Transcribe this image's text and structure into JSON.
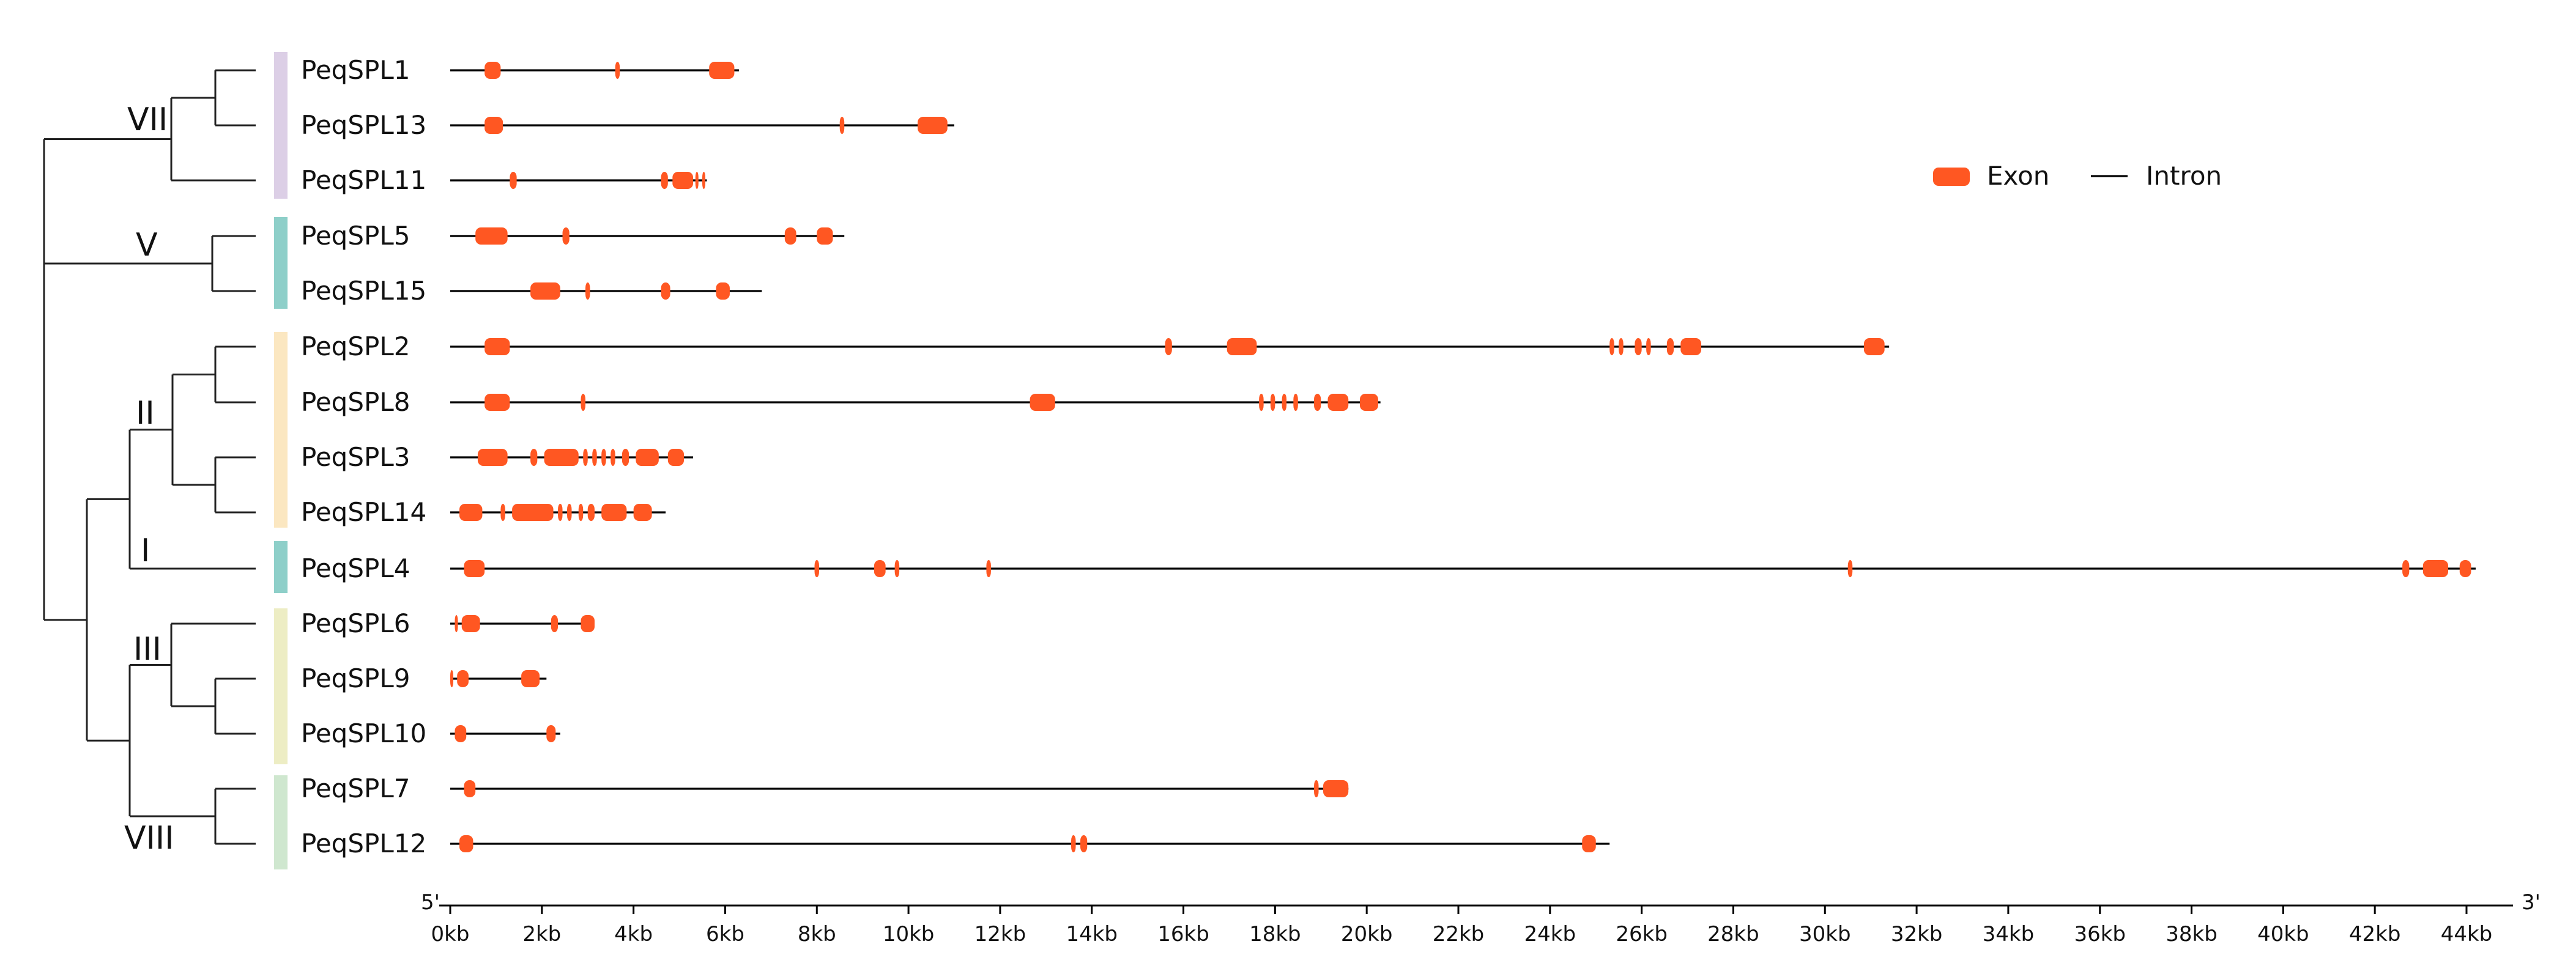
{
  "colors": {
    "exon": "#FF5722",
    "intron": "#000000",
    "tree": "#222222",
    "group_colors": {
      "VII": "#DCCFE6",
      "V": "#8ECFC9",
      "II": "#FBE7C1",
      "I": "#8ECFC9",
      "III": "#EDEDC4",
      "VIII": "#CFE7CF"
    }
  },
  "legend": {
    "exon_label": "Exon",
    "intron_label": "Intron"
  },
  "axis": {
    "left_end_label": "5'",
    "right_end_label": "3'",
    "ticks": [
      "0kb",
      "2kb",
      "4kb",
      "6kb",
      "8kb",
      "10kb",
      "12kb",
      "14kb",
      "16kb",
      "18kb",
      "20kb",
      "22kb",
      "24kb",
      "26kb",
      "28kb",
      "30kb",
      "32kb",
      "34kb",
      "36kb",
      "38kb",
      "40kb",
      "42kb",
      "44kb"
    ],
    "tick_values_kb": [
      0,
      2,
      4,
      6,
      8,
      10,
      12,
      14,
      16,
      18,
      20,
      22,
      24,
      26,
      28,
      30,
      32,
      34,
      36,
      38,
      40,
      42,
      44
    ],
    "range_kb": [
      0,
      45
    ]
  },
  "clades": [
    {
      "label": "VII",
      "color": "VII",
      "genes": [
        "PeqSPL1",
        "PeqSPL13",
        "PeqSPL11"
      ]
    },
    {
      "label": "V",
      "color": "V",
      "genes": [
        "PeqSPL5",
        "PeqSPL15"
      ]
    },
    {
      "label": "II",
      "color": "II",
      "genes": [
        "PeqSPL2",
        "PeqSPL8",
        "PeqSPL3",
        "PeqSPL14"
      ]
    },
    {
      "label": "I",
      "color": "I",
      "genes": [
        "PeqSPL4"
      ]
    },
    {
      "label": "III",
      "color": "III",
      "genes": [
        "PeqSPL6",
        "PeqSPL9",
        "PeqSPL10"
      ]
    },
    {
      "label": "VIII",
      "color": "VIII",
      "genes": [
        "PeqSPL7",
        "PeqSPL12"
      ]
    }
  ],
  "genes": [
    {
      "name": "PeqSPL1",
      "length_kb": 6.3,
      "exons_kb": [
        [
          0.75,
          1.1
        ],
        [
          3.6,
          3.7
        ],
        [
          5.65,
          6.2
        ]
      ]
    },
    {
      "name": "PeqSPL13",
      "length_kb": 11.0,
      "exons_kb": [
        [
          0.75,
          1.15
        ],
        [
          8.5,
          8.6
        ],
        [
          10.2,
          10.85
        ]
      ]
    },
    {
      "name": "PeqSPL11",
      "length_kb": 5.6,
      "exons_kb": [
        [
          1.3,
          1.45
        ],
        [
          4.6,
          4.75
        ],
        [
          4.85,
          5.3
        ],
        [
          5.35,
          5.4
        ],
        [
          5.5,
          5.55
        ]
      ]
    },
    {
      "name": "PeqSPL5",
      "length_kb": 8.6,
      "exons_kb": [
        [
          0.55,
          1.25
        ],
        [
          2.45,
          2.6
        ],
        [
          7.3,
          7.55
        ],
        [
          8.0,
          8.35
        ]
      ]
    },
    {
      "name": "PeqSPL15",
      "length_kb": 6.8,
      "exons_kb": [
        [
          1.75,
          2.4
        ],
        [
          2.95,
          3.05
        ],
        [
          4.6,
          4.8
        ],
        [
          5.8,
          6.1
        ]
      ]
    },
    {
      "name": "PeqSPL2",
      "length_kb": 31.4,
      "exons_kb": [
        [
          0.75,
          1.3
        ],
        [
          15.6,
          15.75
        ],
        [
          16.95,
          17.6
        ],
        [
          25.3,
          25.4
        ],
        [
          25.5,
          25.6
        ],
        [
          25.85,
          26.0
        ],
        [
          26.1,
          26.2
        ],
        [
          26.55,
          26.7
        ],
        [
          26.85,
          27.3
        ],
        [
          30.85,
          31.3
        ]
      ]
    },
    {
      "name": "PeqSPL8",
      "length_kb": 20.3,
      "exons_kb": [
        [
          0.75,
          1.3
        ],
        [
          2.85,
          2.95
        ],
        [
          12.65,
          13.2
        ],
        [
          17.65,
          17.75
        ],
        [
          17.9,
          18.0
        ],
        [
          18.15,
          18.25
        ],
        [
          18.4,
          18.5
        ],
        [
          18.85,
          19.0
        ],
        [
          19.15,
          19.6
        ],
        [
          19.85,
          20.25
        ]
      ]
    },
    {
      "name": "PeqSPL3",
      "length_kb": 5.3,
      "exons_kb": [
        [
          0.6,
          1.25
        ],
        [
          1.75,
          1.9
        ],
        [
          2.05,
          2.8
        ],
        [
          2.9,
          3.0
        ],
        [
          3.1,
          3.2
        ],
        [
          3.3,
          3.4
        ],
        [
          3.5,
          3.6
        ],
        [
          3.75,
          3.9
        ],
        [
          4.05,
          4.55
        ],
        [
          4.75,
          5.1
        ]
      ]
    },
    {
      "name": "PeqSPL14",
      "length_kb": 4.7,
      "exons_kb": [
        [
          0.2,
          0.7
        ],
        [
          1.1,
          1.2
        ],
        [
          1.35,
          2.25
        ],
        [
          2.35,
          2.45
        ],
        [
          2.55,
          2.65
        ],
        [
          2.8,
          2.9
        ],
        [
          3.0,
          3.15
        ],
        [
          3.3,
          3.85
        ],
        [
          4.0,
          4.4
        ]
      ]
    },
    {
      "name": "PeqSPL4",
      "length_kb": 44.2,
      "exons_kb": [
        [
          0.3,
          0.75
        ],
        [
          7.95,
          8.05
        ],
        [
          9.25,
          9.5
        ],
        [
          9.7,
          9.8
        ],
        [
          11.7,
          11.8
        ],
        [
          30.5,
          30.6
        ],
        [
          42.6,
          42.75
        ],
        [
          43.05,
          43.6
        ],
        [
          43.85,
          44.1
        ]
      ]
    },
    {
      "name": "PeqSPL6",
      "length_kb": 3.1,
      "exons_kb": [
        [
          0.1,
          0.15
        ],
        [
          0.25,
          0.65
        ],
        [
          2.2,
          2.35
        ],
        [
          2.85,
          3.15
        ]
      ]
    },
    {
      "name": "PeqSPL9",
      "length_kb": 2.1,
      "exons_kb": [
        [
          0.0,
          0.05
        ],
        [
          0.15,
          0.4
        ],
        [
          1.55,
          1.95
        ]
      ]
    },
    {
      "name": "PeqSPL10",
      "length_kb": 2.4,
      "exons_kb": [
        [
          0.1,
          0.35
        ],
        [
          2.1,
          2.3
        ]
      ]
    },
    {
      "name": "PeqSPL7",
      "length_kb": 19.6,
      "exons_kb": [
        [
          0.3,
          0.55
        ],
        [
          18.85,
          18.95
        ],
        [
          19.05,
          19.6
        ]
      ]
    },
    {
      "name": "PeqSPL12",
      "length_kb": 25.3,
      "exons_kb": [
        [
          0.2,
          0.5
        ],
        [
          13.55,
          13.65
        ],
        [
          13.75,
          13.9
        ],
        [
          24.7,
          25.0
        ]
      ]
    }
  ]
}
